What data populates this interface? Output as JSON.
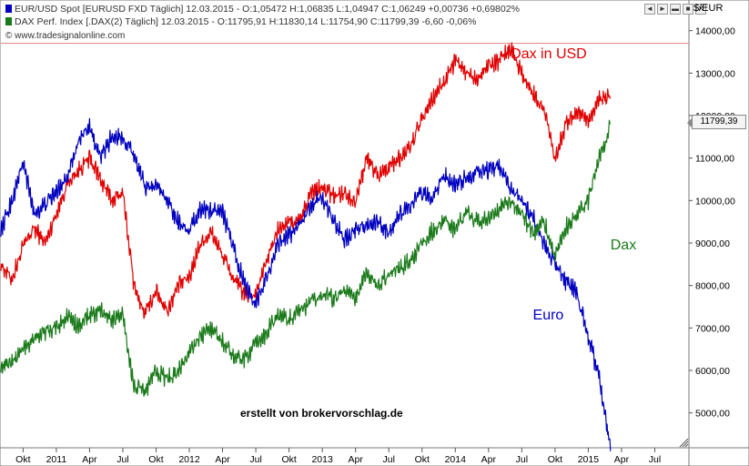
{
  "header": {
    "line1": "EUR/USD Spot [EURUSD FXD  Täglich] 12.03.2015 - O:1,05472 H:1,06835 L:1,04947 C:1,06249 +0,00736 +0,69802%",
    "line2": "DAX Perf. Index [.DAX(2)  Täglich] 12.03.2015 - O:11795,91 H:11830,14 L:11754,90 C:11799,39 -6,60 -0,06%",
    "copyright": "© www.tradesignalonline.com"
  },
  "controls": [
    "◄",
    "►",
    "▬",
    "■",
    "✕"
  ],
  "chart_data": {
    "type": "line",
    "yunit": "$/EUR",
    "ylim": [
      4200,
      14700
    ],
    "yticks": [
      "14000,00",
      "13000,00",
      "12000,00",
      "11000,00",
      "10000,00",
      "9000,00",
      "8000,00",
      "7000,00",
      "6000,00",
      "5000,00"
    ],
    "ytick_values": [
      14000,
      13000,
      12000,
      11000,
      10000,
      9000,
      8000,
      7000,
      6000,
      5000
    ],
    "xlim": [
      "2010-08",
      "2015-10"
    ],
    "xticks": [
      {
        "label": "Okt",
        "date": "2010-10"
      },
      {
        "label": "2011",
        "date": "2011-01"
      },
      {
        "label": "Apr",
        "date": "2011-04"
      },
      {
        "label": "Jul",
        "date": "2011-07"
      },
      {
        "label": "Okt",
        "date": "2011-10"
      },
      {
        "label": "2012",
        "date": "2012-01"
      },
      {
        "label": "Apr",
        "date": "2012-04"
      },
      {
        "label": "Jul",
        "date": "2012-07"
      },
      {
        "label": "Okt",
        "date": "2012-10"
      },
      {
        "label": "2013",
        "date": "2013-01"
      },
      {
        "label": "Apr",
        "date": "2013-04"
      },
      {
        "label": "Jul",
        "date": "2013-07"
      },
      {
        "label": "Okt",
        "date": "2013-10"
      },
      {
        "label": "2014",
        "date": "2014-01"
      },
      {
        "label": "Apr",
        "date": "2014-04"
      },
      {
        "label": "Jul",
        "date": "2014-07"
      },
      {
        "label": "Okt",
        "date": "2014-10"
      },
      {
        "label": "2015",
        "date": "2015-01"
      },
      {
        "label": "Apr",
        "date": "2015-04"
      },
      {
        "label": "Jul",
        "date": "2015-07"
      }
    ],
    "last_price": "11799,39",
    "reference_level": 13700,
    "annotations": [
      {
        "text": "Dax in USD",
        "color": "#e00000",
        "x": "2014-06",
        "y": 13350
      },
      {
        "text": "Dax",
        "color": "#1a7a1a",
        "x": "2015-03",
        "y": 8850
      },
      {
        "text": "Euro",
        "color": "#0000c0",
        "x": "2014-08",
        "y": 7200
      }
    ],
    "credit": "erstellt von brokervorschlag.de",
    "series": [
      {
        "name": "Dax in USD",
        "color": "#e00000",
        "points": [
          [
            "2010-08",
            8500
          ],
          [
            "2010-09",
            8150
          ],
          [
            "2010-10",
            8900
          ],
          [
            "2010-11",
            9350
          ],
          [
            "2010-12",
            9000
          ],
          [
            "2011-01",
            9700
          ],
          [
            "2011-02",
            10400
          ],
          [
            "2011-03",
            10700
          ],
          [
            "2011-04",
            11000
          ],
          [
            "2011-05",
            10500
          ],
          [
            "2011-06",
            10000
          ],
          [
            "2011-07",
            10200
          ],
          [
            "2011-08",
            8000
          ],
          [
            "2011-09",
            7300
          ],
          [
            "2011-10",
            7900
          ],
          [
            "2011-11",
            7400
          ],
          [
            "2011-12",
            8000
          ],
          [
            "2012-01",
            8200
          ],
          [
            "2012-02",
            9000
          ],
          [
            "2012-03",
            9250
          ],
          [
            "2012-04",
            8700
          ],
          [
            "2012-05",
            8150
          ],
          [
            "2012-06",
            7800
          ],
          [
            "2012-07",
            7800
          ],
          [
            "2012-08",
            8600
          ],
          [
            "2012-09",
            9300
          ],
          [
            "2012-10",
            9500
          ],
          [
            "2012-11",
            9500
          ],
          [
            "2012-12",
            10200
          ],
          [
            "2013-01",
            10300
          ],
          [
            "2013-02",
            10100
          ],
          [
            "2013-03",
            10200
          ],
          [
            "2013-04",
            10000
          ],
          [
            "2013-05",
            11000
          ],
          [
            "2013-06",
            10600
          ],
          [
            "2013-07",
            10800
          ],
          [
            "2013-08",
            11000
          ],
          [
            "2013-09",
            11300
          ],
          [
            "2013-10",
            11900
          ],
          [
            "2013-11",
            12400
          ],
          [
            "2013-12",
            12800
          ],
          [
            "2014-01",
            13300
          ],
          [
            "2014-02",
            13000
          ],
          [
            "2014-03",
            12900
          ],
          [
            "2014-04",
            13200
          ],
          [
            "2014-05",
            13300
          ],
          [
            "2014-06",
            13600
          ],
          [
            "2014-07",
            13000
          ],
          [
            "2014-08",
            12500
          ],
          [
            "2014-09",
            12200
          ],
          [
            "2014-10",
            11000
          ],
          [
            "2014-11",
            11800
          ],
          [
            "2014-12",
            12100
          ],
          [
            "2015-01",
            11900
          ],
          [
            "2015-02",
            12400
          ],
          [
            "2015-03",
            12400
          ]
        ]
      },
      {
        "name": "Euro",
        "color": "#0000c0",
        "points": [
          [
            "2010-08",
            9300
          ],
          [
            "2010-09",
            10000
          ],
          [
            "2010-10",
            10900
          ],
          [
            "2010-11",
            9700
          ],
          [
            "2010-12",
            9900
          ],
          [
            "2011-01",
            10200
          ],
          [
            "2011-02",
            10600
          ],
          [
            "2011-03",
            11400
          ],
          [
            "2011-04",
            11700
          ],
          [
            "2011-05",
            11000
          ],
          [
            "2011-06",
            11500
          ],
          [
            "2011-07",
            11500
          ],
          [
            "2011-08",
            11100
          ],
          [
            "2011-09",
            10300
          ],
          [
            "2011-10",
            10400
          ],
          [
            "2011-11",
            10000
          ],
          [
            "2011-12",
            9500
          ],
          [
            "2012-01",
            9300
          ],
          [
            "2012-02",
            9800
          ],
          [
            "2012-03",
            9800
          ],
          [
            "2012-04",
            9700
          ],
          [
            "2012-05",
            8900
          ],
          [
            "2012-06",
            8000
          ],
          [
            "2012-07",
            7600
          ],
          [
            "2012-08",
            8200
          ],
          [
            "2012-09",
            9000
          ],
          [
            "2012-10",
            9200
          ],
          [
            "2012-11",
            9400
          ],
          [
            "2012-12",
            9900
          ],
          [
            "2013-01",
            10100
          ],
          [
            "2013-02",
            9500
          ],
          [
            "2013-03",
            9100
          ],
          [
            "2013-04",
            9300
          ],
          [
            "2013-05",
            9400
          ],
          [
            "2013-06",
            9500
          ],
          [
            "2013-07",
            9200
          ],
          [
            "2013-08",
            9700
          ],
          [
            "2013-09",
            9900
          ],
          [
            "2013-10",
            10200
          ],
          [
            "2013-11",
            10000
          ],
          [
            "2013-12",
            10600
          ],
          [
            "2014-01",
            10400
          ],
          [
            "2014-02",
            10500
          ],
          [
            "2014-03",
            10700
          ],
          [
            "2014-04",
            10700
          ],
          [
            "2014-05",
            10800
          ],
          [
            "2014-06",
            10300
          ],
          [
            "2014-07",
            10000
          ],
          [
            "2014-08",
            9600
          ],
          [
            "2014-09",
            9000
          ],
          [
            "2014-10",
            8500
          ],
          [
            "2014-11",
            8100
          ],
          [
            "2014-12",
            7800
          ],
          [
            "2015-01",
            6800
          ],
          [
            "2015-02",
            5800
          ],
          [
            "2015-03",
            4100
          ]
        ]
      },
      {
        "name": "Dax",
        "color": "#1a7a1a",
        "points": [
          [
            "2010-08",
            6100
          ],
          [
            "2010-09",
            6200
          ],
          [
            "2010-10",
            6500
          ],
          [
            "2010-11",
            6800
          ],
          [
            "2010-12",
            6900
          ],
          [
            "2011-01",
            7000
          ],
          [
            "2011-02",
            7300
          ],
          [
            "2011-03",
            7000
          ],
          [
            "2011-04",
            7300
          ],
          [
            "2011-05",
            7400
          ],
          [
            "2011-06",
            7200
          ],
          [
            "2011-07",
            7300
          ],
          [
            "2011-08",
            5600
          ],
          [
            "2011-09",
            5500
          ],
          [
            "2011-10",
            6000
          ],
          [
            "2011-11",
            5800
          ],
          [
            "2011-12",
            6000
          ],
          [
            "2012-01",
            6400
          ],
          [
            "2012-02",
            6800
          ],
          [
            "2012-03",
            7000
          ],
          [
            "2012-04",
            6700
          ],
          [
            "2012-05",
            6300
          ],
          [
            "2012-06",
            6300
          ],
          [
            "2012-07",
            6600
          ],
          [
            "2012-08",
            6900
          ],
          [
            "2012-09",
            7300
          ],
          [
            "2012-10",
            7200
          ],
          [
            "2012-11",
            7400
          ],
          [
            "2012-12",
            7600
          ],
          [
            "2013-01",
            7800
          ],
          [
            "2013-02",
            7700
          ],
          [
            "2013-03",
            7900
          ],
          [
            "2013-04",
            7700
          ],
          [
            "2013-05",
            8300
          ],
          [
            "2013-06",
            8000
          ],
          [
            "2013-07",
            8300
          ],
          [
            "2013-08",
            8400
          ],
          [
            "2013-09",
            8600
          ],
          [
            "2013-10",
            9000
          ],
          [
            "2013-11",
            9300
          ],
          [
            "2013-12",
            9500
          ],
          [
            "2014-01",
            9300
          ],
          [
            "2014-02",
            9700
          ],
          [
            "2014-03",
            9500
          ],
          [
            "2014-04",
            9600
          ],
          [
            "2014-05",
            9800
          ],
          [
            "2014-06",
            10000
          ],
          [
            "2014-07",
            9700
          ],
          [
            "2014-08",
            9200
          ],
          [
            "2014-09",
            9500
          ],
          [
            "2014-10",
            8700
          ],
          [
            "2014-11",
            9400
          ],
          [
            "2014-12",
            9700
          ],
          [
            "2015-01",
            10000
          ],
          [
            "2015-02",
            11000
          ],
          [
            "2015-03",
            11799
          ]
        ]
      }
    ]
  }
}
